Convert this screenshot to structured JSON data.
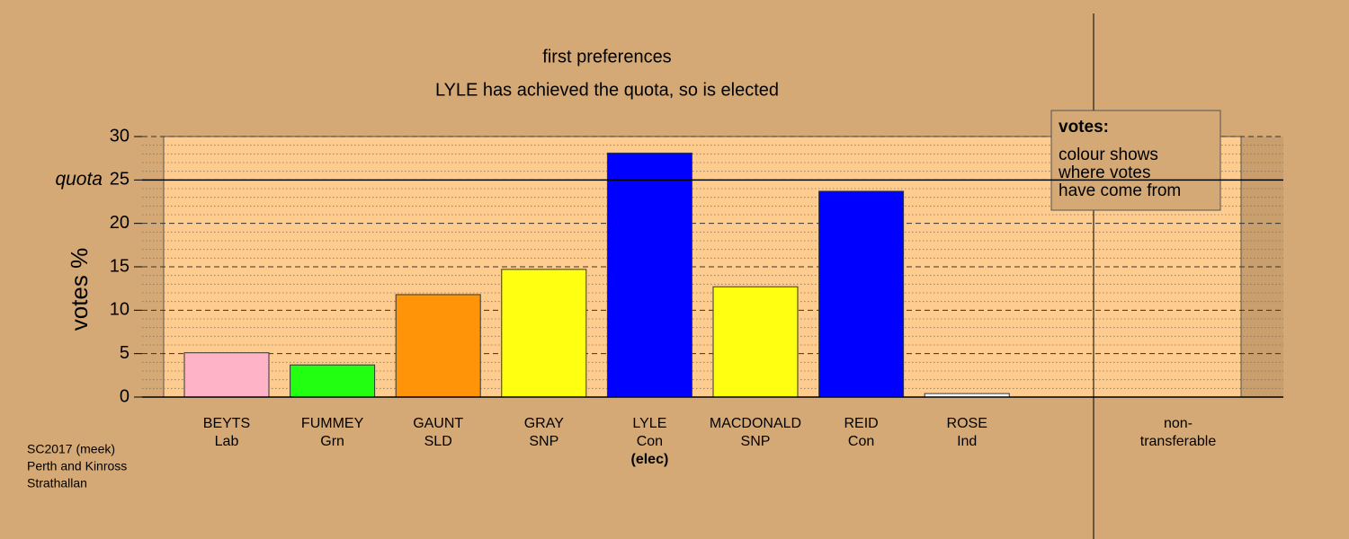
{
  "chart_data": {
    "type": "bar",
    "title": "first preferences",
    "subtitle": "LYLE has achieved the quota, so is elected",
    "y_label": "votes %",
    "categories": [
      [
        "BEYTS",
        "Lab"
      ],
      [
        "FUMMEY",
        "Grn"
      ],
      [
        "GAUNT",
        "SLD"
      ],
      [
        "GRAY",
        "SNP"
      ],
      [
        "LYLE",
        "Con",
        "(elec)"
      ],
      [
        "MACDONALD",
        "SNP"
      ],
      [
        "REID",
        "Con"
      ],
      [
        "ROSE",
        "Ind"
      ],
      [
        "non-",
        "transferable"
      ]
    ],
    "values": [
      5.1,
      3.7,
      11.8,
      14.7,
      28.1,
      12.7,
      23.7,
      0.4,
      0
    ],
    "colors": [
      "#ffb3c6",
      "#22ff11",
      "#ff9408",
      "#ffff11",
      "#0000ff",
      "#ffff11",
      "#0000ff",
      "#ffffff",
      "#ffffff"
    ],
    "ylim": [
      0,
      30
    ],
    "yticks": [
      0,
      5,
      10,
      15,
      20,
      {
        "value": 25,
        "label": "25"
      },
      30
    ],
    "yticks_minor": [
      1,
      2,
      3,
      4,
      6,
      7,
      8,
      9,
      11,
      12,
      13,
      14,
      16,
      17,
      18,
      19,
      21,
      22,
      23,
      24,
      26,
      27,
      28,
      29
    ],
    "quota": {
      "value": 25,
      "label": "quota"
    },
    "grid": true,
    "legend": {
      "title": "votes:",
      "lines": [
        "colour shows",
        "where votes",
        "have come from"
      ]
    },
    "footnote": [
      "SC2017 (meek)",
      "Perth and Kinross",
      "Strathallan"
    ]
  }
}
